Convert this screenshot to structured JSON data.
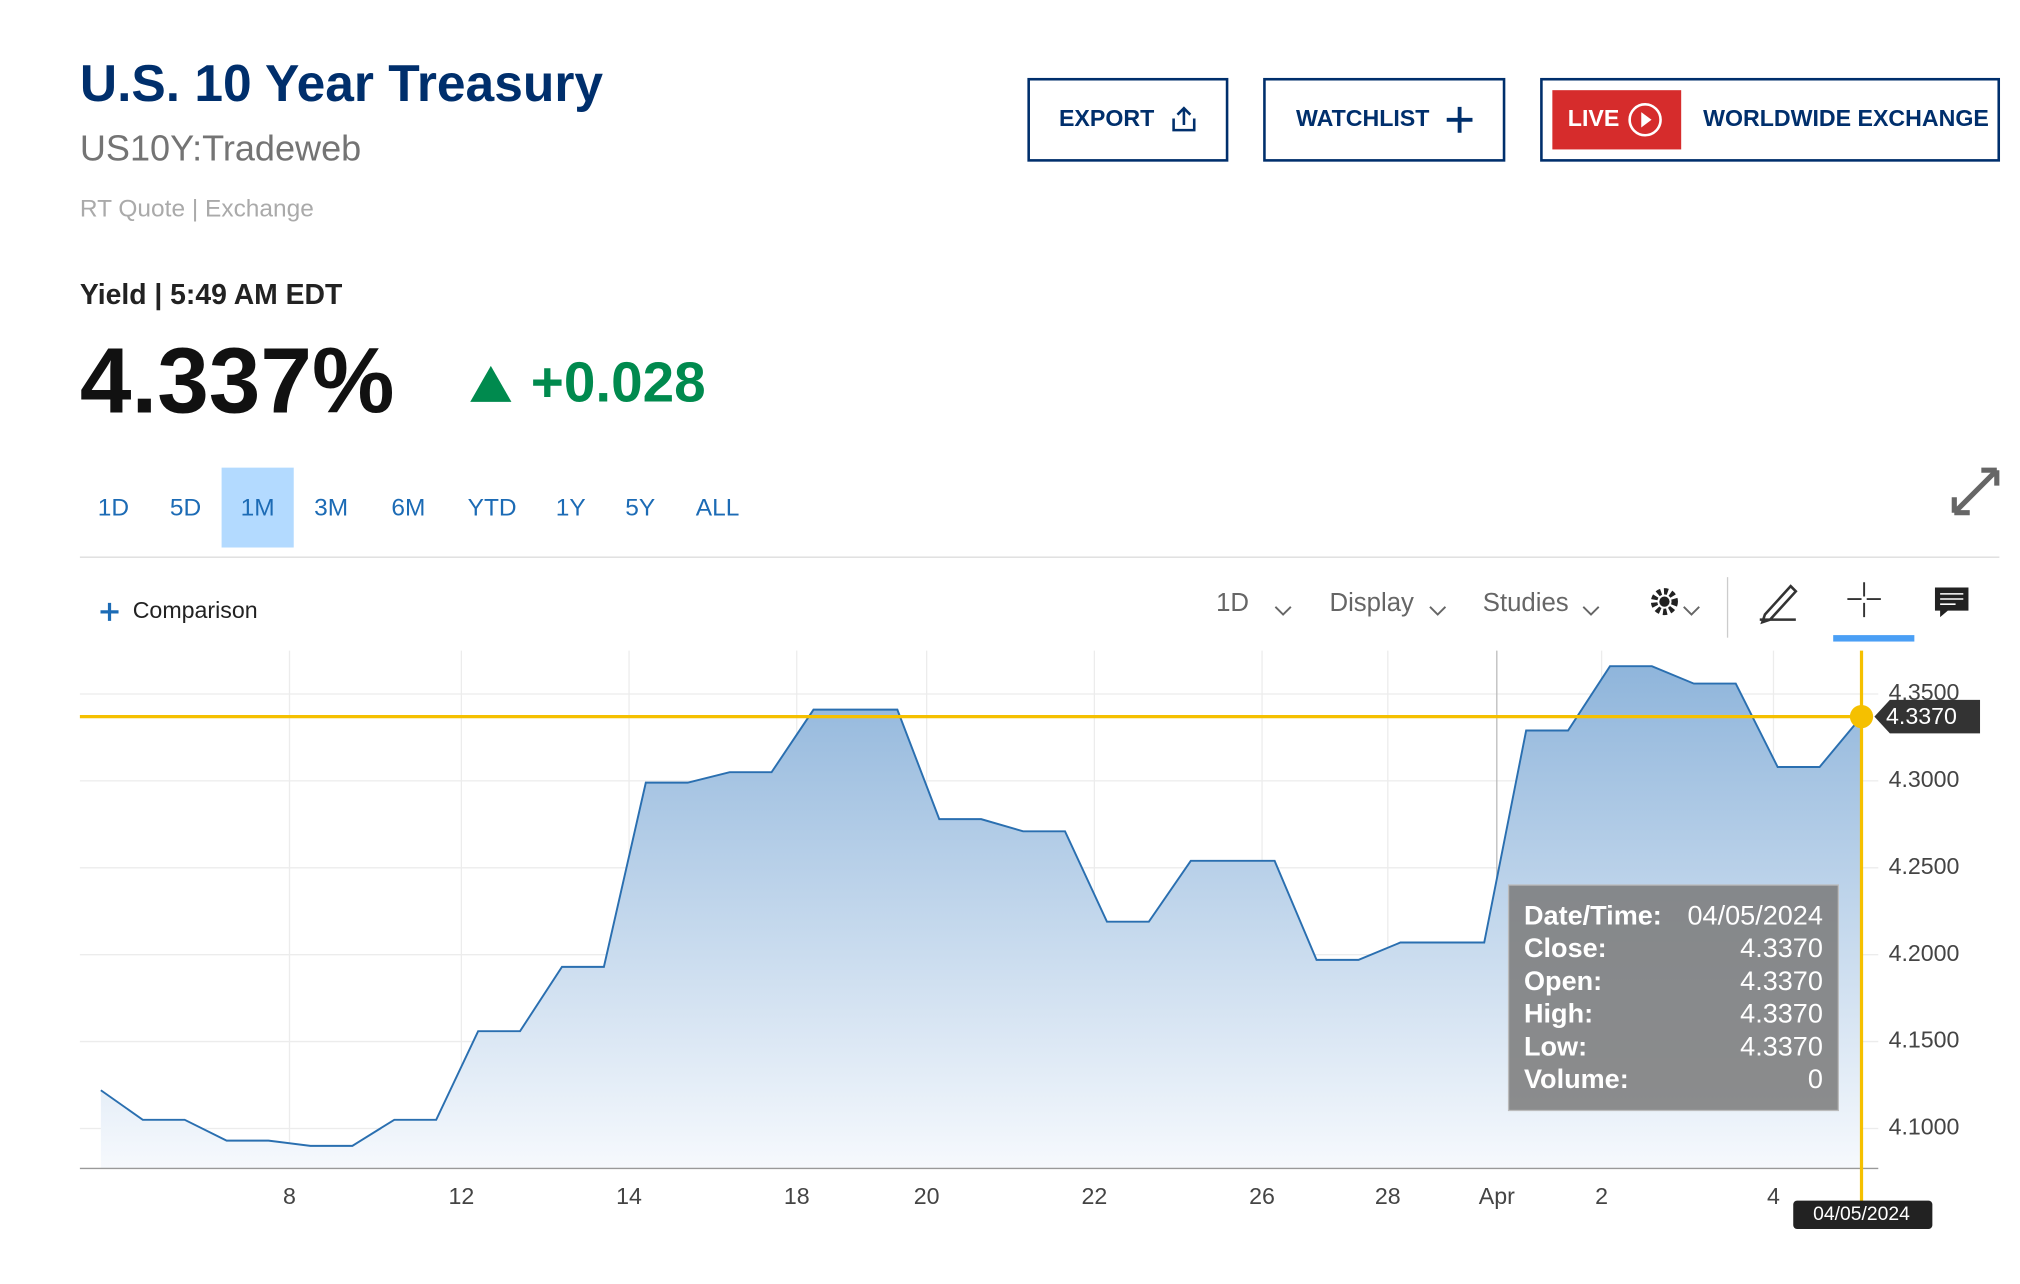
{
  "header": {
    "title": "U.S. 10 Year Treasury",
    "symbol": "US10Y:Tradeweb",
    "quote_type": "RT Quote | Exchange",
    "yield_time": "Yield | 5:49 AM EDT",
    "price": "4.337%",
    "change": "+0.028"
  },
  "buttons": {
    "export": "EXPORT",
    "watchlist": "WATCHLIST",
    "live": "LIVE",
    "exchange": "WORLDWIDE EXCHANGE"
  },
  "ranges": [
    "1D",
    "5D",
    "1M",
    "3M",
    "6M",
    "YTD",
    "1Y",
    "5Y",
    "ALL"
  ],
  "toolbar": {
    "comparison": "Comparison",
    "interval": "1D",
    "display": "Display",
    "studies": "Studies"
  },
  "chart_data": {
    "type": "area",
    "color": "#2a6fb0",
    "x": [
      0,
      1,
      2,
      3,
      4,
      5,
      6,
      7,
      8,
      9,
      10,
      11,
      12,
      13,
      14,
      15,
      16,
      17,
      18,
      19,
      20,
      21,
      22,
      23,
      24,
      25,
      26,
      27,
      28,
      29,
      30,
      31,
      32,
      33,
      34,
      35,
      36,
      37,
      38,
      39,
      40,
      41,
      42
    ],
    "values": [
      4.122,
      4.105,
      4.105,
      4.093,
      4.093,
      4.09,
      4.09,
      4.105,
      4.105,
      4.156,
      4.156,
      4.193,
      4.193,
      4.299,
      4.299,
      4.305,
      4.305,
      4.341,
      4.341,
      4.341,
      4.278,
      4.278,
      4.271,
      4.271,
      4.219,
      4.219,
      4.254,
      4.254,
      4.254,
      4.197,
      4.197,
      4.207,
      4.207,
      4.207,
      4.329,
      4.329,
      4.366,
      4.366,
      4.356,
      4.356,
      4.308,
      4.308,
      4.337
    ],
    "xlim": [
      -0.5,
      42.4
    ],
    "ylim": [
      4.077,
      4.375
    ],
    "xticks": [
      {
        "value": 4.5,
        "label": "8"
      },
      {
        "value": 8.6,
        "label": "12"
      },
      {
        "value": 12.6,
        "label": "14"
      },
      {
        "value": 16.6,
        "label": "18"
      },
      {
        "value": 19.7,
        "label": "20"
      },
      {
        "value": 23.7,
        "label": "22"
      },
      {
        "value": 27.7,
        "label": "26"
      },
      {
        "value": 30.7,
        "label": "28"
      },
      {
        "value": 33.3,
        "label": "Apr"
      },
      {
        "value": 35.8,
        "label": "2"
      },
      {
        "value": 39.9,
        "label": "4"
      }
    ],
    "yticks": [
      {
        "value": 4.1,
        "label": "4.1000"
      },
      {
        "value": 4.15,
        "label": "4.1500"
      },
      {
        "value": 4.2,
        "label": "4.2000"
      },
      {
        "value": 4.25,
        "label": "4.2500"
      },
      {
        "value": 4.3,
        "label": "4.3000"
      },
      {
        "value": 4.35,
        "label": "4.3500"
      }
    ],
    "grid": true,
    "crosshair": {
      "value": 4.337,
      "label": "4.3370",
      "date": "04/05/2024"
    },
    "tooltip": [
      [
        "Date/Time:",
        "04/05/2024"
      ],
      [
        "Close:",
        "4.3370"
      ],
      [
        "Open:",
        "4.3370"
      ],
      [
        "High:",
        "4.3370"
      ],
      [
        "Low:",
        "4.3370"
      ],
      [
        "Volume:",
        "0"
      ]
    ]
  }
}
